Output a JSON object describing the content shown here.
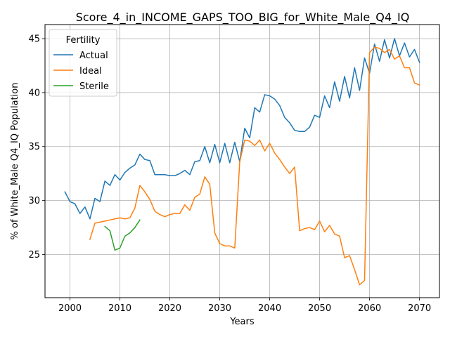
{
  "chart_data": {
    "type": "line",
    "title": "Score_4_in_INCOME_GAPS_TOO_BIG_for_White_Male_Q4_IQ",
    "xlabel": "Years",
    "ylabel": "% of White_Male Q4_IQ Population",
    "xlim": [
      1995,
      2074
    ],
    "ylim": [
      21,
      46.3
    ],
    "xticks": [
      2000,
      2010,
      2020,
      2030,
      2040,
      2050,
      2060,
      2070
    ],
    "yticks": [
      25,
      30,
      35,
      40,
      45
    ],
    "grid": true,
    "legend": {
      "title": "Fertility",
      "placement": "top-left"
    },
    "series": [
      {
        "name": "Actual",
        "color": "#1f77b4",
        "x": [
          1999,
          2000,
          2001,
          2002,
          2003,
          2004,
          2005,
          2006,
          2007,
          2008,
          2009,
          2010,
          2011,
          2012,
          2013,
          2014,
          2015,
          2016,
          2017,
          2018,
          2019,
          2020,
          2021,
          2022,
          2023,
          2024,
          2025,
          2026,
          2027,
          2028,
          2029,
          2030,
          2031,
          2032,
          2033,
          2034,
          2035,
          2036,
          2037,
          2038,
          2039,
          2040,
          2041,
          2042,
          2043,
          2044,
          2045,
          2046,
          2047,
          2048,
          2049,
          2050,
          2051,
          2052,
          2053,
          2054,
          2055,
          2056,
          2057,
          2058,
          2059,
          2060,
          2061,
          2062,
          2063,
          2064,
          2065,
          2066,
          2067,
          2068,
          2069,
          2070
        ],
        "values": [
          30.8,
          29.9,
          29.7,
          28.8,
          29.4,
          28.3,
          30.2,
          29.9,
          31.8,
          31.4,
          32.4,
          31.9,
          32.6,
          33.0,
          33.3,
          34.3,
          33.8,
          33.7,
          32.4,
          32.4,
          32.4,
          32.3,
          32.3,
          32.5,
          32.8,
          32.4,
          33.6,
          33.7,
          35.0,
          33.5,
          35.2,
          33.5,
          35.3,
          33.5,
          35.4,
          33.6,
          36.7,
          35.8,
          38.6,
          38.2,
          39.8,
          39.7,
          39.4,
          38.8,
          37.7,
          37.2,
          36.5,
          36.4,
          36.4,
          36.8,
          37.9,
          37.7,
          39.7,
          38.6,
          41.0,
          39.2,
          41.5,
          39.5,
          42.3,
          40.2,
          43.2,
          41.8,
          44.5,
          42.9,
          44.9,
          43.2,
          45.0,
          43.4,
          44.6,
          43.3,
          44.0,
          42.8
        ]
      },
      {
        "name": "Ideal",
        "color": "#ff7f0e",
        "x": [
          2004,
          2005,
          2006,
          2007,
          2008,
          2009,
          2010,
          2011,
          2012,
          2013,
          2014,
          2015,
          2016,
          2017,
          2018,
          2019,
          2020,
          2021,
          2022,
          2023,
          2024,
          2025,
          2026,
          2027,
          2028,
          2029,
          2030,
          2031,
          2032,
          2033,
          2034,
          2035,
          2036,
          2037,
          2038,
          2039,
          2040,
          2041,
          2042,
          2043,
          2044,
          2045,
          2046,
          2047,
          2048,
          2049,
          2050,
          2051,
          2052,
          2053,
          2054,
          2055,
          2056,
          2057,
          2058,
          2059,
          2060,
          2061,
          2062,
          2063,
          2064,
          2065,
          2066,
          2067,
          2068,
          2069,
          2070
        ],
        "values": [
          26.4,
          27.9,
          28.0,
          28.1,
          28.2,
          28.3,
          28.4,
          28.3,
          28.4,
          29.3,
          31.4,
          30.8,
          30.1,
          29.0,
          28.7,
          28.5,
          28.7,
          28.8,
          28.8,
          29.6,
          29.1,
          30.3,
          30.6,
          32.2,
          31.5,
          27.0,
          26.0,
          25.8,
          25.8,
          25.6,
          33.6,
          35.6,
          35.5,
          35.1,
          35.6,
          34.6,
          35.3,
          34.4,
          33.8,
          33.1,
          32.5,
          33.1,
          27.2,
          27.4,
          27.5,
          27.3,
          28.1,
          27.1,
          27.7,
          26.9,
          26.7,
          24.7,
          24.9,
          23.6,
          22.2,
          22.6,
          43.7,
          44.2,
          44.1,
          43.7,
          44.0,
          43.1,
          43.4,
          42.3,
          42.3,
          40.9,
          40.7
        ]
      },
      {
        "name": "Sterile",
        "color": "#2ca02c",
        "x": [
          2007,
          2008,
          2009,
          2010,
          2011,
          2012,
          2013,
          2014
        ],
        "values": [
          27.6,
          27.2,
          25.4,
          25.6,
          26.7,
          27.0,
          27.5,
          28.2
        ]
      }
    ]
  }
}
